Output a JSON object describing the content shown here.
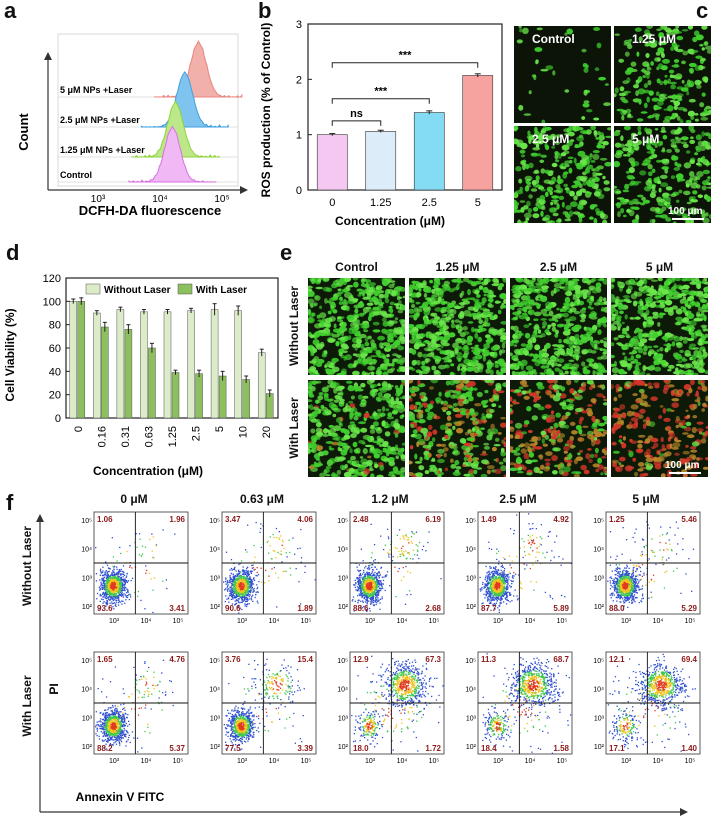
{
  "panels": {
    "a": "a",
    "b": "b",
    "c": "c",
    "d": "d",
    "e": "e",
    "f": "f"
  },
  "panel_a": {
    "xlabel": "DCFH-DA fluorescence",
    "ylabel": "Count",
    "xticks": [
      "10³",
      "10⁴",
      "10⁵"
    ],
    "series": [
      {
        "name": "5 μM NPs +Laser",
        "peak": 4.62,
        "color": "#e9847f",
        "fill": "#f2b0ab"
      },
      {
        "name": "2.5 μM NPs +Laser",
        "peak": 4.4,
        "color": "#3f9fde",
        "fill": "#7fc4ee"
      },
      {
        "name": "1.25 μM NPs +Laser",
        "peak": 4.25,
        "color": "#8dd33a",
        "fill": "#bde889"
      },
      {
        "name": "Control",
        "peak": 4.2,
        "color": "#d86fe0",
        "fill": "#f0b8f4"
      }
    ]
  },
  "chart_data": [
    {
      "type": "bar",
      "panel": "b",
      "title": "",
      "xlabel": "Concentration (μM)",
      "ylabel": "ROS production (% of Control)",
      "categories": [
        "0",
        "1.25",
        "2.5",
        "5"
      ],
      "values": [
        1.0,
        1.06,
        1.4,
        2.07
      ],
      "errors": [
        0.02,
        0.02,
        0.03,
        0.03
      ],
      "colors": [
        "#f5c8f2",
        "#dcecf9",
        "#84dcf4",
        "#f6a3a0"
      ],
      "ylim": [
        0,
        3
      ],
      "yticks": [
        "0",
        "1",
        "2",
        "3"
      ],
      "annotations": [
        {
          "from": 0,
          "to": 1,
          "label": "ns"
        },
        {
          "from": 0,
          "to": 2,
          "label": "***"
        },
        {
          "from": 0,
          "to": 3,
          "label": "***"
        }
      ]
    },
    {
      "type": "bar",
      "panel": "d",
      "xlabel": "Concentration (μM)",
      "ylabel": "Cell Viability (%)",
      "categories": [
        "0",
        "0.16",
        "0.31",
        "0.63",
        "1.25",
        "2.5",
        "5",
        "10",
        "20"
      ],
      "ylim": [
        0,
        120
      ],
      "yticks": [
        "0",
        "20",
        "40",
        "60",
        "80",
        "100",
        "120"
      ],
      "series": [
        {
          "name": "Without Laser",
          "color": "#dcebc8",
          "values": [
            100,
            90,
            93,
            91,
            91,
            92,
            93,
            92,
            56
          ],
          "errors": [
            2,
            2,
            2,
            2,
            2,
            2,
            5,
            4,
            3
          ]
        },
        {
          "name": "With Laser",
          "color": "#8cbf5e",
          "values": [
            100,
            78,
            76,
            60,
            39,
            38,
            36,
            33,
            21
          ],
          "errors": [
            3,
            4,
            4,
            4,
            2,
            3,
            4,
            3,
            3
          ]
        }
      ]
    }
  ],
  "panel_c": {
    "labels": [
      "Control",
      "1.25 μM",
      "2.5 μM",
      "5 μM"
    ],
    "scale": "100 μm"
  },
  "panel_e": {
    "columns": [
      "Control",
      "1.25 μM",
      "2.5 μM",
      "5 μM"
    ],
    "rows": [
      "Without Laser",
      "With Laser"
    ],
    "scale": "100 μm"
  },
  "panel_f": {
    "columns": [
      "0 μM",
      "0.63 μM",
      "1.2 μM",
      "2.5 μM",
      "5 μM"
    ],
    "rows": [
      "Without Laser",
      "With Laser"
    ],
    "ylabel": "PI",
    "xlabel": "Annexin V FITC",
    "tick_labels": {
      "x": [
        "10³",
        "10⁴",
        "10⁵"
      ],
      "y": [
        "10²",
        "10³",
        "10⁴",
        "10⁵"
      ]
    },
    "quadrants": [
      [
        {
          "ul": "1.06",
          "ur": "1.96",
          "ll": "93.6",
          "lr": "3.41"
        },
        {
          "ul": "3.47",
          "ur": "4.06",
          "ll": "90.6",
          "lr": "1.89"
        },
        {
          "ul": "2.48",
          "ur": "6.19",
          "ll": "88.6",
          "lr": "2.68"
        },
        {
          "ul": "1.49",
          "ur": "4.92",
          "ll": "87.7",
          "lr": "5.89"
        },
        {
          "ul": "1.25",
          "ur": "5.46",
          "ll": "88.0",
          "lr": "5.29"
        }
      ],
      [
        {
          "ul": "1.65",
          "ur": "4.76",
          "ll": "88.2",
          "lr": "5.37"
        },
        {
          "ul": "3.76",
          "ur": "15.4",
          "ll": "77.5",
          "lr": "3.39"
        },
        {
          "ul": "12.9",
          "ur": "67.3",
          "ll": "18.0",
          "lr": "1.72"
        },
        {
          "ul": "11.3",
          "ur": "68.7",
          "ll": "18.4",
          "lr": "1.58"
        },
        {
          "ul": "12.1",
          "ur": "69.4",
          "ll": "17.1",
          "lr": "1.40"
        }
      ]
    ]
  }
}
